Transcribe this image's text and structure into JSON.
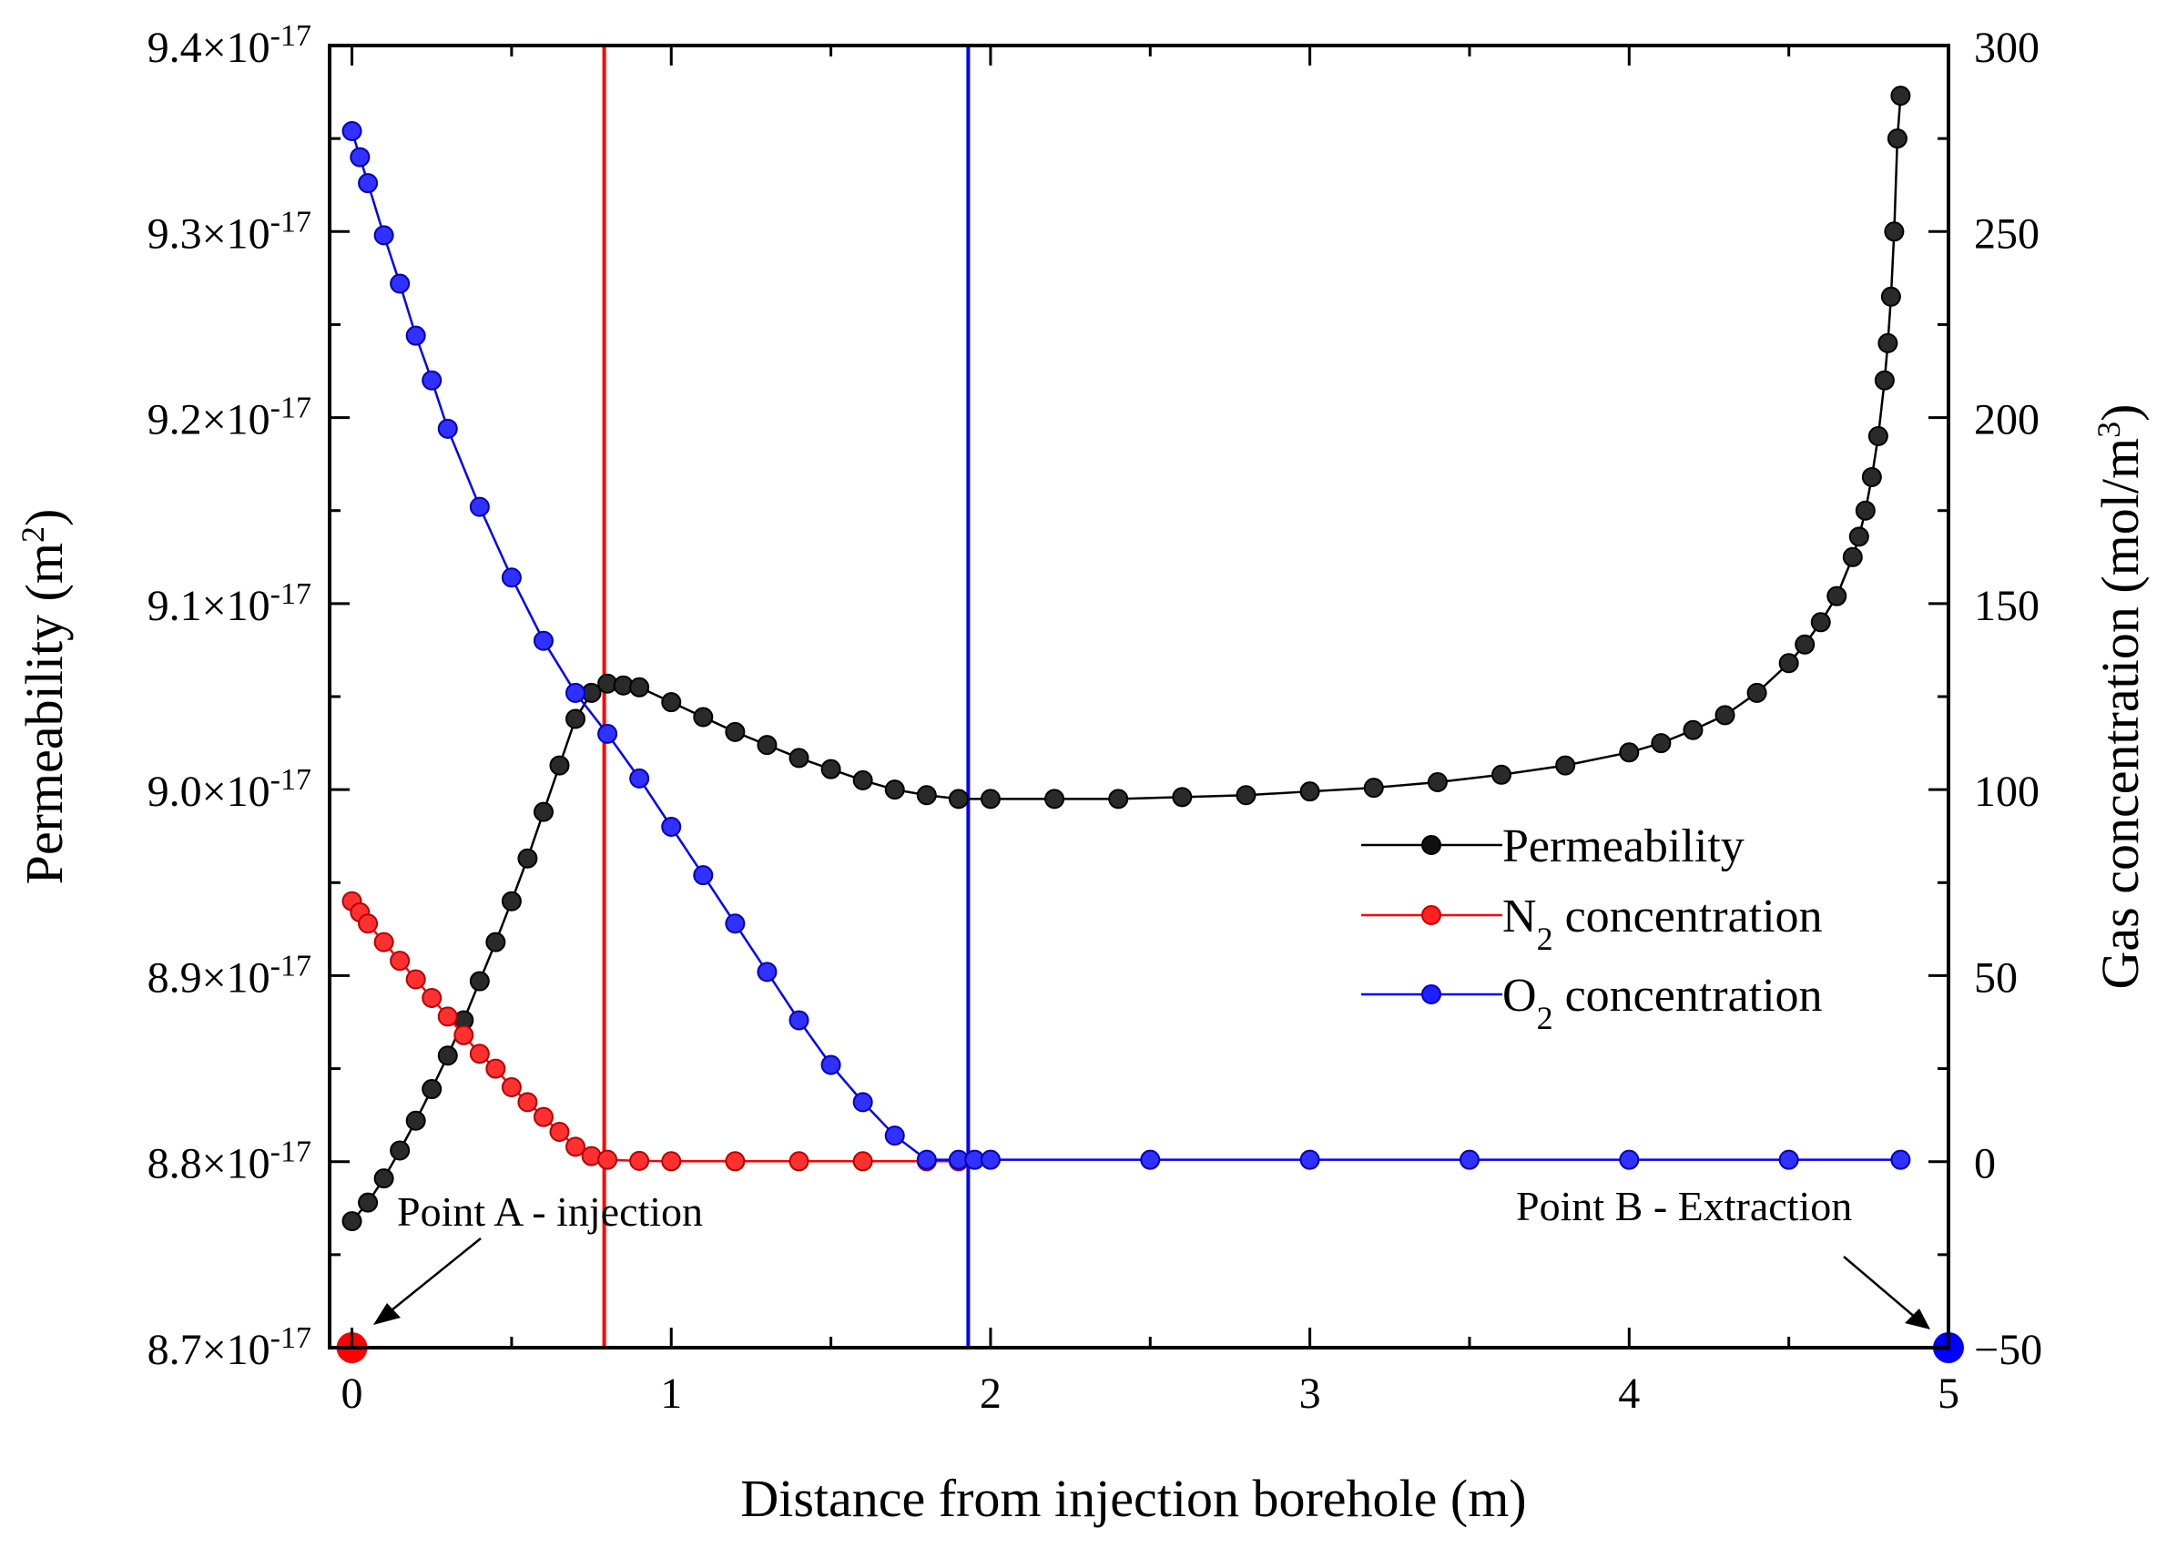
{
  "chart_data": {
    "type": "line",
    "title": "",
    "xlabel": "Distance from injection borehole (m)",
    "ylabel_left": {
      "main": "Permeability (m",
      "sup": "2",
      "close": ")"
    },
    "ylabel_right": {
      "main": "Gas concentration (mol/m",
      "sup": "3",
      "close": ")"
    },
    "xlim": [
      -0.07,
      5.0
    ],
    "ylim_left": [
      8.7e-17,
      9.4e-17
    ],
    "ylim_right": [
      -50,
      300
    ],
    "x_ticks": [
      0,
      1,
      2,
      3,
      4,
      5
    ],
    "x_tick_labels": [
      "0",
      "1",
      "2",
      "3",
      "4",
      "5"
    ],
    "y_left_ticks": [
      8.7e-17,
      8.8e-17,
      8.9e-17,
      9e-17,
      9.1e-17,
      9.2e-17,
      9.3e-17,
      9.4e-17
    ],
    "y_left_tick_labels": [
      {
        "mant": "8.7",
        "exp": "-17"
      },
      {
        "mant": "8.8",
        "exp": "-17"
      },
      {
        "mant": "8.9",
        "exp": "-17"
      },
      {
        "mant": "9.0",
        "exp": "-17"
      },
      {
        "mant": "9.1",
        "exp": "-17"
      },
      {
        "mant": "9.2",
        "exp": "-17"
      },
      {
        "mant": "9.3",
        "exp": "-17"
      },
      {
        "mant": "9.4",
        "exp": "-17"
      }
    ],
    "y_right_ticks": [
      -50,
      0,
      50,
      100,
      150,
      200,
      250,
      300
    ],
    "y_right_tick_labels": [
      "−50",
      "0",
      "50",
      "100",
      "150",
      "200",
      "250",
      "300"
    ],
    "series": [
      {
        "name": "Permeability",
        "axis": "left",
        "color": "#000000",
        "x": [
          0.0,
          0.05,
          0.1,
          0.15,
          0.2,
          0.25,
          0.3,
          0.35,
          0.4,
          0.45,
          0.5,
          0.55,
          0.6,
          0.65,
          0.7,
          0.75,
          0.8,
          0.85,
          0.9,
          1.0,
          1.1,
          1.2,
          1.3,
          1.4,
          1.5,
          1.6,
          1.7,
          1.8,
          1.9,
          2.0,
          2.2,
          2.4,
          2.6,
          2.8,
          3.0,
          3.2,
          3.4,
          3.6,
          3.8,
          4.0,
          4.1,
          4.2,
          4.3,
          4.4,
          4.5,
          4.55,
          4.6,
          4.65,
          4.7,
          4.72,
          4.74,
          4.76,
          4.78,
          4.8,
          4.81,
          4.82,
          4.83,
          4.84,
          4.85
        ],
        "values": [
          8.768e-17,
          8.778e-17,
          8.791e-17,
          8.806e-17,
          8.822e-17,
          8.839e-17,
          8.857e-17,
          8.876e-17,
          8.897e-17,
          8.918e-17,
          8.94e-17,
          8.963e-17,
          8.988e-17,
          9.013e-17,
          9.038e-17,
          9.052e-17,
          9.057e-17,
          9.056e-17,
          9.055e-17,
          9.047e-17,
          9.039e-17,
          9.031e-17,
          9.024e-17,
          9.017e-17,
          9.011e-17,
          9.005e-17,
          9e-17,
          8.997e-17,
          8.995e-17,
          8.995e-17,
          8.995e-17,
          8.995e-17,
          8.996e-17,
          8.997e-17,
          8.999e-17,
          9.001e-17,
          9.004e-17,
          9.008e-17,
          9.013e-17,
          9.02e-17,
          9.025e-17,
          9.032e-17,
          9.04e-17,
          9.052e-17,
          9.068e-17,
          9.078e-17,
          9.09e-17,
          9.104e-17,
          9.125e-17,
          9.136e-17,
          9.15e-17,
          9.168e-17,
          9.19e-17,
          9.22e-17,
          9.24e-17,
          9.265e-17,
          9.3e-17,
          9.35e-17,
          9.373e-17
        ]
      },
      {
        "name": "N",
        "name_sub": "2",
        "name_rest": " concentration",
        "axis": "right",
        "color": "#ff0000",
        "x": [
          0.0,
          0.025,
          0.05,
          0.1,
          0.15,
          0.2,
          0.25,
          0.3,
          0.35,
          0.4,
          0.45,
          0.5,
          0.55,
          0.6,
          0.65,
          0.7,
          0.75,
          0.8,
          0.9,
          1.0,
          1.2,
          1.4,
          1.6,
          1.8,
          1.9
        ],
        "values": [
          70,
          67,
          64,
          59,
          54,
          49,
          44,
          39,
          34,
          29,
          25,
          20,
          16,
          12,
          8,
          4,
          1.5,
          0.5,
          0.2,
          0.1,
          0.1,
          0.1,
          0.1,
          0.1,
          0.1
        ]
      },
      {
        "name": "O",
        "name_sub": "2",
        "name_rest": " concentration",
        "axis": "right",
        "color": "#0000ff",
        "x": [
          0.0,
          0.025,
          0.05,
          0.1,
          0.15,
          0.2,
          0.25,
          0.3,
          0.4,
          0.5,
          0.6,
          0.7,
          0.8,
          0.9,
          1.0,
          1.1,
          1.2,
          1.3,
          1.4,
          1.5,
          1.6,
          1.7,
          1.8,
          1.9,
          1.95,
          2.0,
          2.5,
          3.0,
          3.5,
          4.0,
          4.5,
          4.85
        ],
        "values": [
          277,
          270,
          263,
          249,
          236,
          222,
          210,
          197,
          176,
          157,
          140,
          126,
          115,
          103,
          90,
          77,
          64,
          51,
          38,
          26,
          16,
          7,
          0.5,
          0.5,
          0.5,
          0.5,
          0.5,
          0.5,
          0.5,
          0.5,
          0.5,
          0.5
        ]
      }
    ],
    "vertical_lines": [
      {
        "x": 0.79,
        "color": "#ff0000"
      },
      {
        "x": 1.93,
        "color": "#0000ff"
      }
    ],
    "endpoint_markers": [
      {
        "x": 0.0,
        "y": -50,
        "color": "#ff0000"
      },
      {
        "x": 5.0,
        "y": -50,
        "color": "#0000ff"
      }
    ],
    "annotations": {
      "point_a": "Point A - injection",
      "point_b": "Point B - Extraction"
    },
    "legend": {
      "placement": "center-right"
    }
  }
}
